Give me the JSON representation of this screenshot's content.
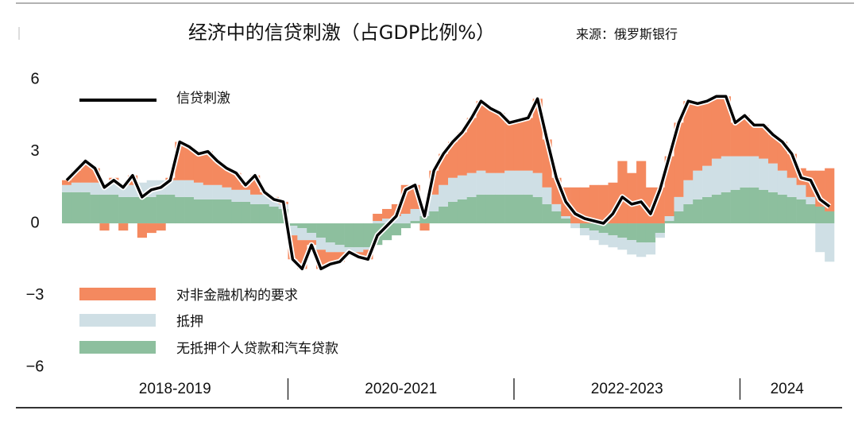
{
  "chart_data": {
    "type": "bar",
    "stacked": true,
    "title": "经济中的信贷刺激（占GDP比例%）",
    "source": "来源：俄罗斯银行",
    "periods": [
      "2018-2019",
      "2020-2021",
      "2022-2023",
      "2024"
    ],
    "categories": [
      null,
      null,
      null,
      null,
      null,
      null,
      null,
      null,
      null,
      null,
      null,
      null,
      null,
      null,
      null,
      null,
      null,
      null,
      null,
      null,
      null,
      null,
      null,
      null,
      null,
      null,
      null,
      null,
      null,
      null,
      null,
      null,
      null,
      null,
      null,
      null,
      null,
      null,
      null,
      null,
      null,
      null,
      null,
      null,
      null,
      null,
      null,
      null,
      null,
      null,
      null,
      null,
      null,
      null,
      null,
      null,
      null,
      null,
      null,
      null,
      null,
      null,
      null,
      null,
      null,
      null,
      null,
      null,
      null,
      null,
      null,
      null,
      null,
      null,
      null,
      null,
      null,
      null,
      null,
      null,
      null,
      null
    ],
    "series": [
      {
        "name": "对非金融机构的要求",
        "color": "#f4895f",
        "values": [
          0.2,
          0.5,
          0.9,
          0.6,
          -0.3,
          0.1,
          -0.3,
          0.4,
          -0.6,
          -0.4,
          -0.3,
          0.1,
          1.6,
          1.4,
          1.2,
          1.4,
          1.0,
          0.8,
          0.7,
          0.2,
          0.8,
          0.1,
          0.1,
          0.1,
          -1.0,
          -1.2,
          -0.2,
          -0.8,
          -0.5,
          -0.4,
          -0.1,
          -0.2,
          -0.4,
          0.3,
          0.4,
          0.5,
          1.2,
          1.0,
          -0.3,
          1.0,
          1.3,
          1.5,
          1.8,
          2.3,
          2.9,
          2.7,
          2.5,
          2.0,
          2.1,
          2.2,
          3.1,
          2.0,
          1.1,
          1.2,
          1.5,
          1.5,
          1.6,
          1.6,
          1.7,
          2.6,
          2.1,
          2.6,
          1.5,
          1.5,
          2.5,
          3.1,
          3.3,
          2.8,
          2.7,
          2.6,
          2.5,
          1.4,
          1.7,
          1.3,
          1.4,
          1.2,
          1.2,
          1.0,
          0.7,
          1.1,
          1.5,
          1.8
        ]
      },
      {
        "name": "抵押",
        "color": "#cfdfe5",
        "values": [
          0.3,
          0.4,
          0.4,
          0.5,
          0.5,
          0.6,
          0.5,
          0.5,
          0.6,
          0.7,
          0.6,
          0.6,
          0.7,
          0.7,
          0.7,
          0.6,
          0.6,
          0.5,
          0.5,
          0.5,
          0.4,
          0.4,
          0.3,
          0.2,
          -0.4,
          -0.5,
          -0.3,
          -0.5,
          -0.4,
          -0.3,
          -0.2,
          -0.2,
          -0.1,
          0.1,
          0.2,
          0.3,
          0.4,
          0.5,
          0.5,
          0.7,
          0.9,
          1.0,
          1.0,
          1.0,
          1.0,
          0.9,
          0.9,
          1.0,
          1.0,
          1.0,
          1.0,
          0.7,
          0.3,
          0.1,
          -0.2,
          -0.3,
          -0.4,
          -0.5,
          -0.5,
          -0.5,
          -0.6,
          -0.6,
          -0.5,
          -0.2,
          0.2,
          0.6,
          1.0,
          1.2,
          1.3,
          1.5,
          1.5,
          1.4,
          1.3,
          1.3,
          1.3,
          1.2,
          1.0,
          0.8,
          0.6,
          0.3,
          -1.2,
          -1.6
        ]
      },
      {
        "name": "无抵押个人贷款和汽车贷款",
        "color": "#8dbf9e",
        "values": [
          1.3,
          1.3,
          1.3,
          1.2,
          1.2,
          1.2,
          1.1,
          1.1,
          1.1,
          1.1,
          1.2,
          1.2,
          1.1,
          1.1,
          1.0,
          1.0,
          1.0,
          1.0,
          0.9,
          0.9,
          0.8,
          0.8,
          0.7,
          0.6,
          -0.1,
          -0.2,
          -0.4,
          -0.6,
          -0.8,
          -0.9,
          -1.0,
          -1.0,
          -1.0,
          -0.9,
          -0.7,
          -0.5,
          -0.2,
          0.1,
          0.3,
          0.5,
          0.7,
          0.9,
          1.0,
          1.1,
          1.2,
          1.2,
          1.2,
          1.2,
          1.2,
          1.2,
          1.1,
          0.8,
          0.5,
          0.2,
          0.0,
          -0.2,
          -0.3,
          -0.4,
          -0.5,
          -0.6,
          -0.7,
          -0.8,
          -0.8,
          -0.4,
          0.1,
          0.5,
          0.8,
          1.0,
          1.1,
          1.2,
          1.3,
          1.4,
          1.5,
          1.5,
          1.4,
          1.3,
          1.2,
          1.1,
          1.0,
          0.8,
          0.7,
          0.5
        ]
      }
    ],
    "line": {
      "name": "信贷刺激",
      "color": "#000000",
      "values": [
        1.8,
        2.2,
        2.6,
        2.3,
        1.5,
        1.8,
        1.5,
        2.0,
        1.1,
        1.4,
        1.5,
        1.8,
        3.4,
        3.2,
        2.9,
        3.0,
        2.6,
        2.3,
        2.1,
        1.6,
        2.0,
        1.3,
        1.0,
        0.9,
        -1.5,
        -1.9,
        -0.9,
        -1.9,
        -1.7,
        -1.6,
        -1.2,
        -1.4,
        -1.5,
        -0.5,
        -0.1,
        0.3,
        1.4,
        1.6,
        0.3,
        2.2,
        2.9,
        3.4,
        3.8,
        4.4,
        5.1,
        4.8,
        4.6,
        4.2,
        4.3,
        4.4,
        5.2,
        3.5,
        1.9,
        0.9,
        0.4,
        0.2,
        0.1,
        0.0,
        0.4,
        1.1,
        0.8,
        0.9,
        0.4,
        1.4,
        2.8,
        4.2,
        5.1,
        5.0,
        5.1,
        5.3,
        5.3,
        4.2,
        4.5,
        4.1,
        4.1,
        3.7,
        3.4,
        2.9,
        1.9,
        1.8,
        1.0,
        0.7
      ]
    },
    "ylim": [
      -6,
      6.6
    ],
    "yticks": [
      {
        "value": -6,
        "label": "−6"
      },
      {
        "value": -3,
        "label": "−3"
      },
      0,
      3,
      6
    ],
    "grid": false
  }
}
